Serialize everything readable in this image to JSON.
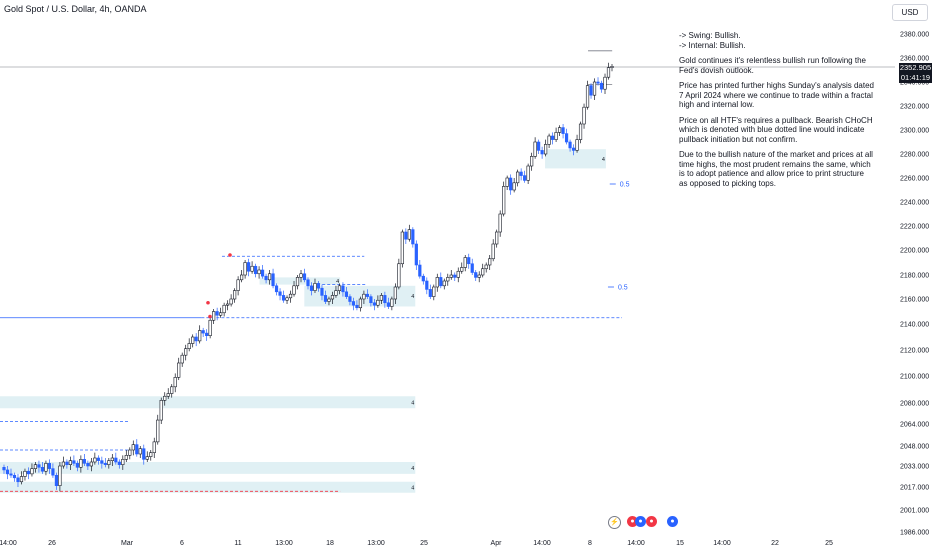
{
  "header": {
    "title": "Gold Spot / U.S. Dollar, 4h, OANDA",
    "currency": "USD"
  },
  "colors": {
    "up": "#131722",
    "down": "#2962ff",
    "zone": "#e0f0f4",
    "structure_line": "#2962ff",
    "high_line": "#f23645"
  },
  "chart_data": {
    "type": "candlestick",
    "title": "Gold Spot / U.S. Dollar, 4h, OANDA",
    "ylim": [
      1985,
      2385
    ],
    "y_ticks": [
      "2380.000",
      "2360.000",
      "2340.000",
      "2320.000",
      "2300.000",
      "2280.000",
      "2260.000",
      "2240.000",
      "2220.000",
      "2200.000",
      "2180.000",
      "2160.000",
      "2140.000",
      "2120.000",
      "2100.000",
      "2080.000",
      "2064.000",
      "2048.000",
      "2033.000",
      "2017.000",
      "2001.000",
      "1986.000"
    ],
    "x_ticks": [
      "14:00",
      "26",
      "Mar",
      "6",
      "11",
      "13:00",
      "18",
      "13:00",
      "25",
      "Apr",
      "14:00",
      "8",
      "14:00",
      "15",
      "14:00",
      "22",
      "25"
    ],
    "current_price": "2352.905",
    "countdown": "01:41:19",
    "close_series": [
      2030,
      2027,
      2026,
      2024,
      2021,
      2025,
      2029,
      2027,
      2031,
      2034,
      2032,
      2029,
      2035,
      2031,
      2026,
      2018,
      2033,
      2036,
      2034,
      2037,
      2035,
      2032,
      2038,
      2035,
      2033,
      2036,
      2039,
      2037,
      2035,
      2034,
      2037,
      2039,
      2036,
      2034,
      2038,
      2041,
      2045,
      2049,
      2042,
      2046,
      2038,
      2040,
      2043,
      2051,
      2067,
      2082,
      2085,
      2087,
      2092,
      2099,
      2110,
      2116,
      2121,
      2125,
      2130,
      2127,
      2135,
      2133,
      2131,
      2143,
      2150,
      2147,
      2149,
      2155,
      2156,
      2160,
      2167,
      2176,
      2180,
      2190,
      2183,
      2187,
      2181,
      2184,
      2179,
      2176,
      2181,
      2171,
      2166,
      2163,
      2159,
      2161,
      2164,
      2171,
      2178,
      2181,
      2176,
      2171,
      2167,
      2173,
      2169,
      2163,
      2158,
      2160,
      2163,
      2167,
      2171,
      2166,
      2162,
      2158,
      2155,
      2153,
      2160,
      2164,
      2162,
      2157,
      2155,
      2159,
      2163,
      2157,
      2154,
      2160,
      2170,
      2189,
      2215,
      2209,
      2217,
      2205,
      2188,
      2179,
      2175,
      2168,
      2162,
      2170,
      2178,
      2171,
      2175,
      2178,
      2180,
      2178,
      2183,
      2186,
      2194,
      2189,
      2182,
      2178,
      2180,
      2185,
      2188,
      2193,
      2205,
      2215,
      2230,
      2253,
      2260,
      2250,
      2256,
      2265,
      2262,
      2258,
      2270,
      2278,
      2290,
      2283,
      2280,
      2288,
      2295,
      2292,
      2298,
      2302,
      2297,
      2290,
      2285,
      2283,
      2292,
      2305,
      2319,
      2337,
      2329,
      2340,
      2339,
      2334,
      2344,
      2352,
      2353
    ],
    "zones": [
      {
        "y1": 2268,
        "y2": 2284,
        "x_from": 0.609,
        "x_to": 0.677,
        "label": "4"
      },
      {
        "y1": 2154,
        "y2": 2171,
        "x_from": 0.34,
        "x_to": 0.464,
        "label": "4"
      },
      {
        "y1": 2172,
        "y2": 2178,
        "x_from": 0.29,
        "x_to": 0.38,
        "label": "4"
      },
      {
        "y1": 2076,
        "y2": 2085,
        "x_from": 0.0,
        "x_to": 0.464,
        "label": "4"
      },
      {
        "y1": 2027,
        "y2": 2036,
        "x_from": 0.0,
        "x_to": 0.464,
        "label": "4"
      },
      {
        "y1": 2013,
        "y2": 2021,
        "x_from": 0.0,
        "x_to": 0.464,
        "label": "4"
      }
    ],
    "lines": [
      {
        "y": 2145,
        "x_from": 0.0,
        "x_to": 0.225,
        "style": "solid",
        "color": "#2962ff"
      },
      {
        "y": 2145,
        "x_from": 0.225,
        "x_to": 0.695,
        "style": "dashed",
        "color": "#2962ff"
      },
      {
        "y": 2195,
        "x_from": 0.248,
        "x_to": 0.407,
        "style": "dashed",
        "color": "#2962ff"
      },
      {
        "y": 2172,
        "x_from": 0.36,
        "x_to": 0.41,
        "style": "dashed",
        "color": "#2962ff"
      },
      {
        "y": 2066,
        "x_from": 0.0,
        "x_to": 0.145,
        "style": "dashed",
        "color": "#2962ff"
      },
      {
        "y": 2045,
        "x_from": 0.0,
        "x_to": 0.145,
        "style": "dashed",
        "color": "#2962ff"
      },
      {
        "y": 2014,
        "x_from": 0.0,
        "x_to": 0.38,
        "style": "dashed",
        "color": "#f23645"
      },
      {
        "y": 2366,
        "x_from": 0.657,
        "x_to": 0.684,
        "style": "solid",
        "color": "#787b86"
      },
      {
        "y": 2338,
        "x_from": 0.657,
        "x_to": 0.684,
        "style": "solid",
        "color": "#787b86"
      }
    ],
    "midpoints": [
      {
        "y": 2255,
        "x": 0.688,
        "label": "0.5"
      },
      {
        "y": 2170,
        "x": 0.686,
        "label": "0.5"
      }
    ]
  },
  "notes": {
    "swing": "-> Swing:  Bullish.",
    "internal": "-> Internal:  Bullish.",
    "p1": "Gold continues it's relentless bullish run following the Fed's dovish outlook.",
    "p2": "Price has printed further highs Sunday's analysis dated 7 April 2024 where we continue to trade within a fractal high and internal low.",
    "p3": "Price on all HTF's requires a pullback.  Bearish CHoCH which is denoted with blue dotted line would indicate pullback initiation but not confirm.",
    "p4": "Due to the bullish nature of the market and prices at all time highs, the most prudent remains the same, which is to adopt patience and allow price to print structure as opposed to picking tops."
  },
  "events": [
    {
      "icon": "lightning-icon",
      "glyph": "⚡"
    },
    {
      "icon": "us-flag-icon",
      "glyph": "●"
    },
    {
      "icon": "us-flag-icon",
      "glyph": "●"
    },
    {
      "icon": "us-flag-icon",
      "glyph": "●"
    }
  ]
}
